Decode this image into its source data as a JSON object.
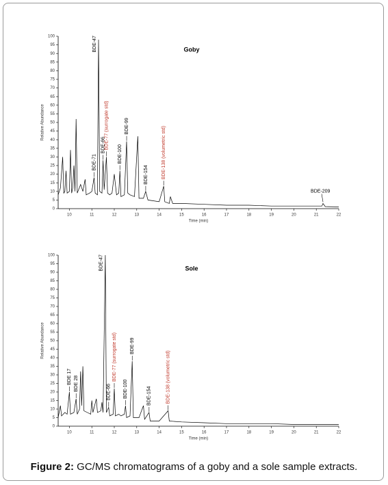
{
  "chart_data": [
    {
      "type": "line",
      "title": "Goby",
      "xlabel": "Time (min)",
      "ylabel": "Relative Abundance",
      "color": "#000000",
      "x": [
        9.5,
        9.6,
        9.7,
        9.75,
        9.8,
        9.85,
        9.9,
        10.0,
        10.05,
        10.1,
        10.15,
        10.2,
        10.25,
        10.3,
        10.35,
        10.5,
        10.6,
        10.7,
        10.75,
        10.9,
        11.0,
        11.1,
        11.15,
        11.25,
        11.3,
        11.35,
        11.45,
        11.5,
        11.55,
        11.65,
        11.7,
        11.8,
        11.9,
        12.0,
        12.1,
        12.2,
        12.25,
        12.3,
        12.45,
        12.55,
        12.6,
        12.7,
        12.9,
        13.05,
        13.1,
        13.3,
        13.4,
        13.5,
        14.0,
        14.2,
        14.25,
        14.45,
        14.5,
        14.6,
        15,
        16,
        17,
        18,
        19,
        20,
        21,
        21.25,
        21.3,
        21.4,
        22
      ],
      "values": [
        8,
        12,
        30,
        9,
        10,
        22,
        9,
        10,
        34,
        9,
        12,
        25,
        10,
        52,
        9,
        14,
        10,
        17,
        8,
        9,
        10,
        18,
        9,
        8,
        98,
        10,
        9,
        28,
        11,
        30,
        9,
        8,
        9,
        20,
        8,
        9,
        22,
        7,
        8,
        39,
        9,
        8,
        7,
        42,
        6,
        6,
        10,
        5,
        4,
        13,
        4,
        3,
        7,
        3,
        3,
        2.5,
        2,
        2,
        1.5,
        1.5,
        1.5,
        1.5,
        3,
        1.2,
        1
      ],
      "xlim": [
        9.5,
        22
      ],
      "ylim": [
        0,
        100
      ],
      "xticks": [
        10,
        11,
        12,
        13,
        14,
        15,
        16,
        17,
        18,
        19,
        20,
        21,
        22
      ],
      "yticks": [
        0,
        5,
        10,
        15,
        20,
        25,
        30,
        35,
        40,
        45,
        50,
        55,
        60,
        65,
        70,
        75,
        80,
        85,
        90,
        95,
        100
      ],
      "annotations": [
        {
          "text": "BDE-47",
          "x": 11.3,
          "color": "#000000"
        },
        {
          "text": "BDE-71",
          "x": 11.1,
          "color": "#000000"
        },
        {
          "text": "BDE-66",
          "x": 11.5,
          "color": "#000000"
        },
        {
          "text": "BDE-77 (surrogate std)",
          "x": 11.65,
          "color": "#c0392b"
        },
        {
          "text": "BDE-100",
          "x": 12.25,
          "color": "#000000"
        },
        {
          "text": "BDE-99",
          "x": 12.55,
          "color": "#000000"
        },
        {
          "text": "BDE-154",
          "x": 13.4,
          "color": "#000000"
        },
        {
          "text": "BDE-138 (volumetric std)",
          "x": 14.2,
          "color": "#c0392b"
        },
        {
          "text": "BDE-209",
          "x": 21.3,
          "color": "#000000",
          "orientation": "horizontal"
        }
      ]
    },
    {
      "type": "line",
      "title": "Sole",
      "xlabel": "Time (min)",
      "ylabel": "Relative Abundance",
      "color": "#000000",
      "x": [
        9.5,
        9.6,
        9.65,
        9.8,
        9.9,
        10.0,
        10.05,
        10.2,
        10.3,
        10.35,
        10.45,
        10.5,
        10.55,
        10.6,
        10.65,
        10.8,
        10.95,
        11.0,
        11.05,
        11.2,
        11.25,
        11.4,
        11.45,
        11.5,
        11.6,
        11.65,
        11.75,
        11.8,
        11.95,
        12.0,
        12.05,
        12.2,
        12.3,
        12.45,
        12.5,
        12.55,
        12.7,
        12.8,
        12.85,
        13.1,
        13.3,
        13.35,
        13.55,
        13.6,
        14.0,
        14.4,
        14.45,
        15,
        16,
        17,
        18,
        19,
        20,
        21,
        22
      ],
      "values": [
        5,
        12,
        6,
        8,
        7,
        20,
        7,
        8,
        16,
        7,
        10,
        32,
        12,
        35,
        9,
        8,
        7,
        15,
        8,
        16,
        8,
        9,
        14,
        8,
        100,
        8,
        11,
        6,
        7,
        22,
        6,
        7,
        6,
        7,
        12,
        5,
        6,
        38,
        5,
        5,
        12,
        4,
        8,
        3,
        3,
        9,
        3,
        2.5,
        2,
        1.5,
        1.5,
        1.5,
        1,
        1,
        1
      ],
      "xlim": [
        9.5,
        22
      ],
      "ylim": [
        0,
        100
      ],
      "xticks": [
        10,
        11,
        12,
        13,
        14,
        15,
        16,
        17,
        18,
        19,
        20,
        21,
        22
      ],
      "yticks": [
        0,
        5,
        10,
        15,
        20,
        25,
        30,
        35,
        40,
        45,
        50,
        55,
        60,
        65,
        70,
        75,
        80,
        85,
        90,
        95,
        100
      ],
      "annotations": [
        {
          "text": "BDE 17",
          "x": 10.0,
          "color": "#000000"
        },
        {
          "text": "BDE 28",
          "x": 10.3,
          "color": "#000000"
        },
        {
          "text": "BDE-47",
          "x": 11.6,
          "color": "#000000"
        },
        {
          "text": "BDE-66",
          "x": 11.75,
          "color": "#000000"
        },
        {
          "text": "BDE-77 (surrogate std)",
          "x": 12.0,
          "color": "#c0392b"
        },
        {
          "text": "BDE-100",
          "x": 12.5,
          "color": "#000000"
        },
        {
          "text": "BDE-99",
          "x": 12.8,
          "color": "#000000"
        },
        {
          "text": "BDE-154",
          "x": 13.55,
          "color": "#000000"
        },
        {
          "text": "BDE-138 (volumetric std)",
          "x": 14.4,
          "color": "#c0392b"
        }
      ]
    }
  ],
  "caption": {
    "label": "Figure 2:",
    "text": "GC/MS chromatograms of a goby and a sole sample extracts."
  }
}
